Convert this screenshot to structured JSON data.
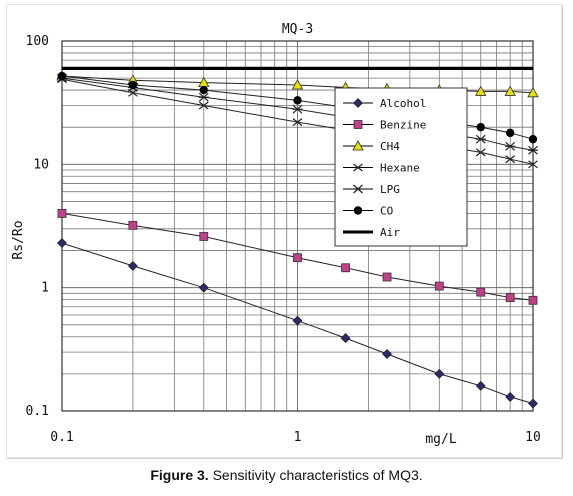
{
  "chart_data": {
    "type": "line",
    "title": "MQ-3",
    "xlabel": "mg/L",
    "ylabel": "Rs/Ro",
    "x_scale": "log",
    "y_scale": "log",
    "xlim": [
      0.1,
      10
    ],
    "ylim": [
      0.1,
      100
    ],
    "grid": true,
    "legend_position": "right-middle",
    "x_tick_labels": [
      {
        "value": 0.1,
        "label": "0.1"
      },
      {
        "value": 1,
        "label": "1"
      },
      {
        "value": 10,
        "label": "10"
      }
    ],
    "y_tick_labels": [
      {
        "value": 100,
        "label": "100"
      },
      {
        "value": 10,
        "label": "10"
      },
      {
        "value": 1,
        "label": "1"
      },
      {
        "value": 0.1,
        "label": "0.1"
      }
    ],
    "series": [
      {
        "name": "Alcohol",
        "marker": "diamond",
        "color": "#2b2b6b",
        "x": [
          0.1,
          0.2,
          0.4,
          1,
          1.6,
          2.4,
          4,
          6,
          8,
          10
        ],
        "y": [
          2.3,
          1.5,
          1.0,
          0.54,
          0.39,
          0.29,
          0.2,
          0.16,
          0.13,
          0.115
        ]
      },
      {
        "name": "Benzine",
        "marker": "square",
        "color": "#c0408a",
        "x": [
          0.1,
          0.2,
          0.4,
          1,
          1.6,
          2.4,
          4,
          6,
          8,
          10
        ],
        "y": [
          4.0,
          3.2,
          2.6,
          1.75,
          1.45,
          1.22,
          1.03,
          0.92,
          0.83,
          0.79
        ]
      },
      {
        "name": "CH4",
        "marker": "triangle",
        "color": "#e8e000",
        "x": [
          0.1,
          0.2,
          0.4,
          1,
          1.6,
          2.4,
          4,
          6,
          8,
          10
        ],
        "y": [
          52,
          48,
          46,
          44,
          42,
          41,
          40,
          39,
          39,
          38
        ]
      },
      {
        "name": "Hexane",
        "marker": "x",
        "color": "#222222",
        "x": [
          0.1,
          0.2,
          0.4,
          1,
          6,
          8,
          10
        ],
        "y": [
          49,
          38,
          30,
          22,
          12.5,
          11,
          10
        ]
      },
      {
        "name": "LPG",
        "marker": "star",
        "color": "#222222",
        "x": [
          0.1,
          0.2,
          0.4,
          1,
          6,
          8,
          10
        ],
        "y": [
          50,
          42,
          35,
          28,
          16,
          14,
          13
        ]
      },
      {
        "name": "CO",
        "marker": "circle",
        "color": "#000000",
        "x": [
          0.1,
          0.2,
          0.4,
          1,
          6,
          8,
          10
        ],
        "y": [
          52,
          44,
          40,
          33,
          20,
          18,
          16
        ]
      },
      {
        "name": "Air",
        "marker": "none",
        "color": "#000000",
        "x": [
          0.1,
          10
        ],
        "y": [
          60,
          60
        ]
      }
    ]
  },
  "caption": {
    "label": "Figure 3.",
    "text": "Sensitivity characteristics of MQ3."
  }
}
